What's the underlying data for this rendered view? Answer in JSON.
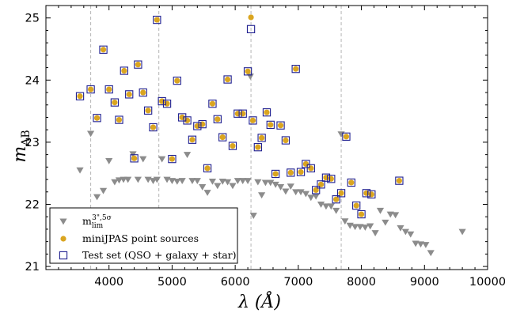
{
  "chart_data": {
    "type": "scatter",
    "xlabel": "λ (Å)",
    "ylabel": "m_AB",
    "xlim": [
      3000,
      10000
    ],
    "ylim": [
      20.95,
      25.2
    ],
    "y_inverted": false,
    "x_ticks": [
      4000,
      5000,
      6000,
      7000,
      8000,
      9000,
      10000
    ],
    "y_ticks": [
      21,
      22,
      23,
      24,
      25
    ],
    "vlines": [
      3710,
      4790,
      6250,
      7680
    ],
    "legend_position": "lower-left",
    "series": [
      {
        "name": "m_lim^{3\",5σ}",
        "legend": "m_lim^(3\",5σ)",
        "marker": "triangle-down",
        "color": "#8c8c8c",
        "points": [
          [
            3540,
            22.55
          ],
          [
            3710,
            23.14
          ],
          [
            3810,
            22.12
          ],
          [
            3910,
            22.22
          ],
          [
            4000,
            22.7
          ],
          [
            4090,
            22.36
          ],
          [
            4160,
            22.39
          ],
          [
            4230,
            22.4
          ],
          [
            4300,
            22.4
          ],
          [
            4380,
            22.81
          ],
          [
            4460,
            22.4
          ],
          [
            4540,
            22.73
          ],
          [
            4620,
            22.4
          ],
          [
            4700,
            22.38
          ],
          [
            4760,
            22.4
          ],
          [
            4840,
            22.73
          ],
          [
            4920,
            22.4
          ],
          [
            5000,
            22.38
          ],
          [
            5080,
            22.37
          ],
          [
            5160,
            22.38
          ],
          [
            5240,
            22.8
          ],
          [
            5320,
            22.38
          ],
          [
            5400,
            22.38
          ],
          [
            5480,
            22.28
          ],
          [
            5560,
            22.19
          ],
          [
            5640,
            22.37
          ],
          [
            5720,
            22.3
          ],
          [
            5800,
            22.37
          ],
          [
            5880,
            22.36
          ],
          [
            5960,
            22.3
          ],
          [
            6040,
            22.38
          ],
          [
            6120,
            22.38
          ],
          [
            6200,
            22.38
          ],
          [
            6240,
            24.06
          ],
          [
            6290,
            21.82
          ],
          [
            6360,
            22.36
          ],
          [
            6420,
            22.15
          ],
          [
            6480,
            22.35
          ],
          [
            6560,
            22.35
          ],
          [
            6640,
            22.32
          ],
          [
            6720,
            22.28
          ],
          [
            6800,
            22.21
          ],
          [
            6880,
            22.29
          ],
          [
            6960,
            22.2
          ],
          [
            7040,
            22.2
          ],
          [
            7120,
            22.17
          ],
          [
            7200,
            22.11
          ],
          [
            7280,
            22.13
          ],
          [
            7360,
            22.0
          ],
          [
            7440,
            21.97
          ],
          [
            7520,
            21.97
          ],
          [
            7600,
            21.9
          ],
          [
            7680,
            23.13
          ],
          [
            7740,
            21.73
          ],
          [
            7820,
            21.66
          ],
          [
            7900,
            21.64
          ],
          [
            7980,
            21.64
          ],
          [
            8060,
            21.63
          ],
          [
            8140,
            21.65
          ],
          [
            8220,
            21.54
          ],
          [
            8300,
            21.9
          ],
          [
            8380,
            21.71
          ],
          [
            8460,
            21.84
          ],
          [
            8540,
            21.83
          ],
          [
            8620,
            21.62
          ],
          [
            8700,
            21.56
          ],
          [
            8780,
            21.52
          ],
          [
            8860,
            21.37
          ],
          [
            8940,
            21.36
          ],
          [
            9020,
            21.35
          ],
          [
            9100,
            21.22
          ],
          [
            9600,
            21.56
          ]
        ]
      },
      {
        "name": "miniJPAS point sources",
        "legend": "miniJPAS point sources",
        "marker": "circle",
        "color": "#daa520",
        "points": [
          [
            3540,
            23.74
          ],
          [
            3710,
            23.85
          ],
          [
            3810,
            23.39
          ],
          [
            3910,
            24.49
          ],
          [
            4000,
            23.85
          ],
          [
            4090,
            23.64
          ],
          [
            4160,
            23.36
          ],
          [
            4240,
            24.15
          ],
          [
            4320,
            23.77
          ],
          [
            4400,
            22.74
          ],
          [
            4460,
            24.25
          ],
          [
            4540,
            23.8
          ],
          [
            4620,
            23.51
          ],
          [
            4700,
            23.24
          ],
          [
            4760,
            24.97
          ],
          [
            4840,
            23.66
          ],
          [
            4920,
            23.62
          ],
          [
            5000,
            22.73
          ],
          [
            5080,
            23.99
          ],
          [
            5160,
            23.4
          ],
          [
            5240,
            23.35
          ],
          [
            5320,
            23.04
          ],
          [
            5400,
            23.26
          ],
          [
            5480,
            23.29
          ],
          [
            5560,
            22.58
          ],
          [
            5640,
            23.62
          ],
          [
            5720,
            23.37
          ],
          [
            5800,
            23.08
          ],
          [
            5880,
            24.01
          ],
          [
            5960,
            22.94
          ],
          [
            6040,
            23.46
          ],
          [
            6120,
            23.46
          ],
          [
            6200,
            24.14
          ],
          [
            6250,
            25.01
          ],
          [
            6280,
            23.35
          ],
          [
            6360,
            22.92
          ],
          [
            6420,
            23.07
          ],
          [
            6500,
            23.48
          ],
          [
            6560,
            23.28
          ],
          [
            6640,
            22.49
          ],
          [
            6720,
            23.27
          ],
          [
            6800,
            23.03
          ],
          [
            6880,
            22.51
          ],
          [
            6960,
            24.18
          ],
          [
            7040,
            22.52
          ],
          [
            7120,
            22.65
          ],
          [
            7200,
            22.58
          ],
          [
            7280,
            22.23
          ],
          [
            7360,
            22.32
          ],
          [
            7440,
            22.43
          ],
          [
            7520,
            22.41
          ],
          [
            7600,
            22.08
          ],
          [
            7680,
            22.18
          ],
          [
            7760,
            23.09
          ],
          [
            7840,
            22.35
          ],
          [
            7920,
            21.98
          ],
          [
            8000,
            21.84
          ],
          [
            8080,
            22.18
          ],
          [
            8160,
            22.16
          ],
          [
            8600,
            22.38
          ]
        ]
      },
      {
        "name": "Test set (QSO + galaxy + star)",
        "legend": "Test set (QSO + galaxy + star)",
        "marker": "square-open",
        "color": "#1f1f8f",
        "points": [
          [
            3540,
            23.74
          ],
          [
            3710,
            23.85
          ],
          [
            3810,
            23.39
          ],
          [
            3910,
            24.49
          ],
          [
            4000,
            23.85
          ],
          [
            4090,
            23.64
          ],
          [
            4160,
            23.36
          ],
          [
            4240,
            24.15
          ],
          [
            4320,
            23.77
          ],
          [
            4400,
            22.74
          ],
          [
            4460,
            24.25
          ],
          [
            4540,
            23.8
          ],
          [
            4620,
            23.51
          ],
          [
            4700,
            23.24
          ],
          [
            4760,
            24.97
          ],
          [
            4840,
            23.66
          ],
          [
            4920,
            23.62
          ],
          [
            5000,
            22.73
          ],
          [
            5080,
            23.99
          ],
          [
            5160,
            23.4
          ],
          [
            5240,
            23.35
          ],
          [
            5320,
            23.04
          ],
          [
            5400,
            23.26
          ],
          [
            5480,
            23.29
          ],
          [
            5560,
            22.58
          ],
          [
            5640,
            23.62
          ],
          [
            5720,
            23.37
          ],
          [
            5800,
            23.08
          ],
          [
            5880,
            24.01
          ],
          [
            5960,
            22.94
          ],
          [
            6040,
            23.46
          ],
          [
            6120,
            23.46
          ],
          [
            6200,
            24.14
          ],
          [
            6250,
            24.82
          ],
          [
            6280,
            23.35
          ],
          [
            6360,
            22.92
          ],
          [
            6420,
            23.07
          ],
          [
            6500,
            23.48
          ],
          [
            6560,
            23.28
          ],
          [
            6640,
            22.49
          ],
          [
            6720,
            23.27
          ],
          [
            6800,
            23.03
          ],
          [
            6880,
            22.51
          ],
          [
            6960,
            24.18
          ],
          [
            7040,
            22.52
          ],
          [
            7120,
            22.65
          ],
          [
            7200,
            22.58
          ],
          [
            7280,
            22.23
          ],
          [
            7360,
            22.32
          ],
          [
            7440,
            22.43
          ],
          [
            7520,
            22.41
          ],
          [
            7600,
            22.08
          ],
          [
            7680,
            22.18
          ],
          [
            7760,
            23.09
          ],
          [
            7840,
            22.35
          ],
          [
            7920,
            21.98
          ],
          [
            8000,
            21.84
          ],
          [
            8080,
            22.18
          ],
          [
            8160,
            22.16
          ],
          [
            8600,
            22.38
          ]
        ]
      }
    ]
  }
}
